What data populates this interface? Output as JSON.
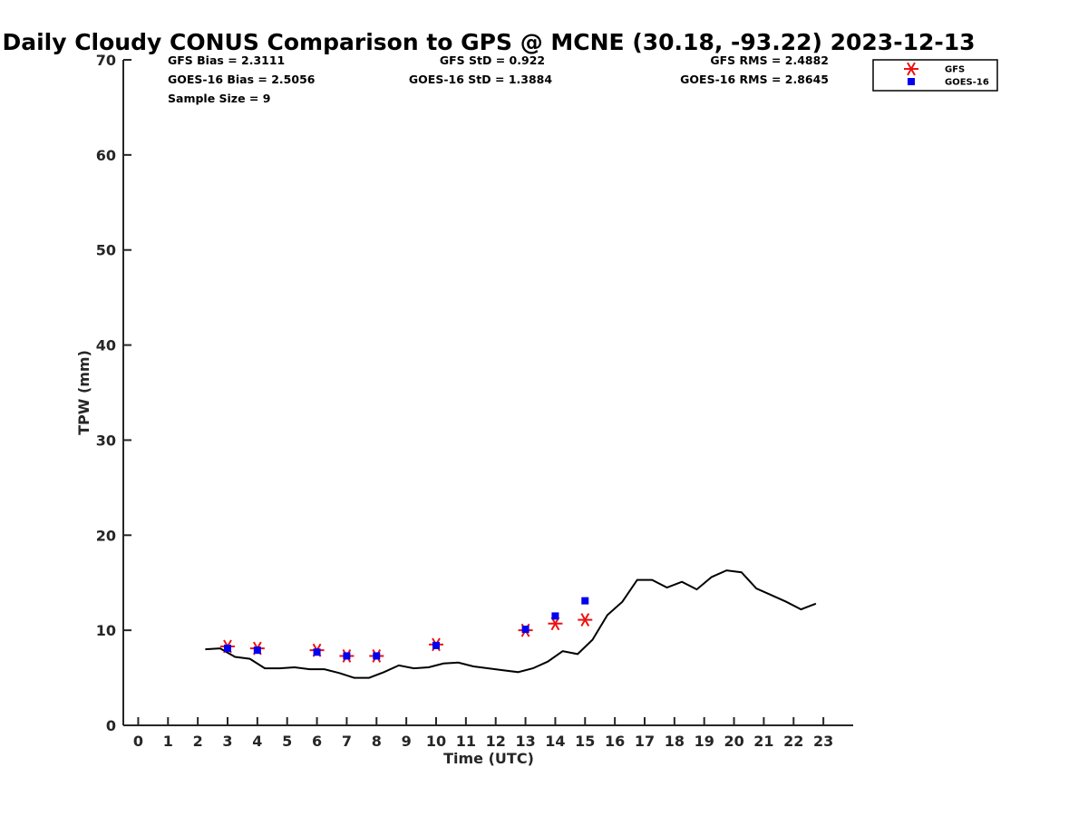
{
  "chart_data": {
    "type": "scatter",
    "title": "Daily Cloudy CONUS Comparison to GPS @ MCNE (30.18, -93.22) 2023-12-13",
    "xlabel": "Time (UTC)",
    "ylabel": "TPW (mm)",
    "xlim": [
      -0.5,
      24
    ],
    "ylim": [
      0,
      70
    ],
    "xticks": [
      0,
      1,
      2,
      3,
      4,
      5,
      6,
      7,
      8,
      9,
      10,
      11,
      12,
      13,
      14,
      15,
      16,
      17,
      18,
      19,
      20,
      21,
      22,
      23
    ],
    "yticks": [
      0,
      10,
      20,
      30,
      40,
      50,
      60,
      70
    ],
    "grid": false,
    "legend_position": "top-right",
    "stats": {
      "gfs_bias": "GFS Bias = 2.3111",
      "goes_bias": "GOES-16 Bias = 2.5056",
      "sample_size": "Sample Size = 9",
      "gfs_std": "GFS StD = 0.922",
      "goes_std": "GOES-16 StD = 1.3884",
      "gfs_rms": "GFS RMS = 2.4882",
      "goes_rms": "GOES-16 RMS = 2.8645"
    },
    "series": [
      {
        "name": "",
        "kind": "line",
        "color": "#000000",
        "x": [
          2.25,
          2.75,
          3.25,
          3.75,
          4.25,
          4.75,
          5.25,
          5.75,
          6.25,
          6.75,
          7.25,
          7.75,
          8.25,
          8.75,
          9.25,
          9.75,
          10.25,
          10.75,
          11.25,
          11.75,
          12.25,
          12.75,
          13.25,
          13.75,
          14.25,
          14.75,
          15.25,
          15.75,
          16.25,
          16.75,
          17.25,
          17.75,
          18.25,
          18.75,
          19.25,
          19.75,
          20.25,
          20.75,
          21.25,
          21.75,
          22.25,
          22.75
        ],
        "y": [
          8.0,
          8.1,
          7.2,
          7.0,
          6.0,
          6.0,
          6.1,
          5.9,
          5.9,
          5.5,
          5.0,
          5.0,
          5.6,
          6.3,
          6.0,
          6.1,
          6.5,
          6.6,
          6.2,
          6.0,
          5.8,
          5.6,
          6.0,
          6.7,
          7.8,
          7.5,
          9.0,
          11.6,
          13.0,
          15.3,
          15.3,
          14.5,
          15.1,
          14.3,
          15.6,
          16.3,
          16.1,
          14.4,
          13.7,
          13.0,
          12.2,
          12.8
        ]
      },
      {
        "name": "GFS",
        "kind": "marker",
        "marker": "star",
        "color": "#ee1111",
        "x": [
          3,
          4,
          6,
          7,
          8,
          10,
          13,
          14,
          15
        ],
        "y": [
          8.3,
          8.1,
          7.9,
          7.3,
          7.3,
          8.5,
          10.0,
          10.7,
          11.1
        ]
      },
      {
        "name": "GOES-16",
        "kind": "marker",
        "marker": "square",
        "color": "#0000ee",
        "x": [
          3,
          4,
          6,
          7,
          8,
          10,
          13,
          14,
          15
        ],
        "y": [
          8.1,
          7.9,
          7.7,
          7.3,
          7.3,
          8.4,
          10.1,
          11.5,
          13.1
        ]
      }
    ]
  }
}
